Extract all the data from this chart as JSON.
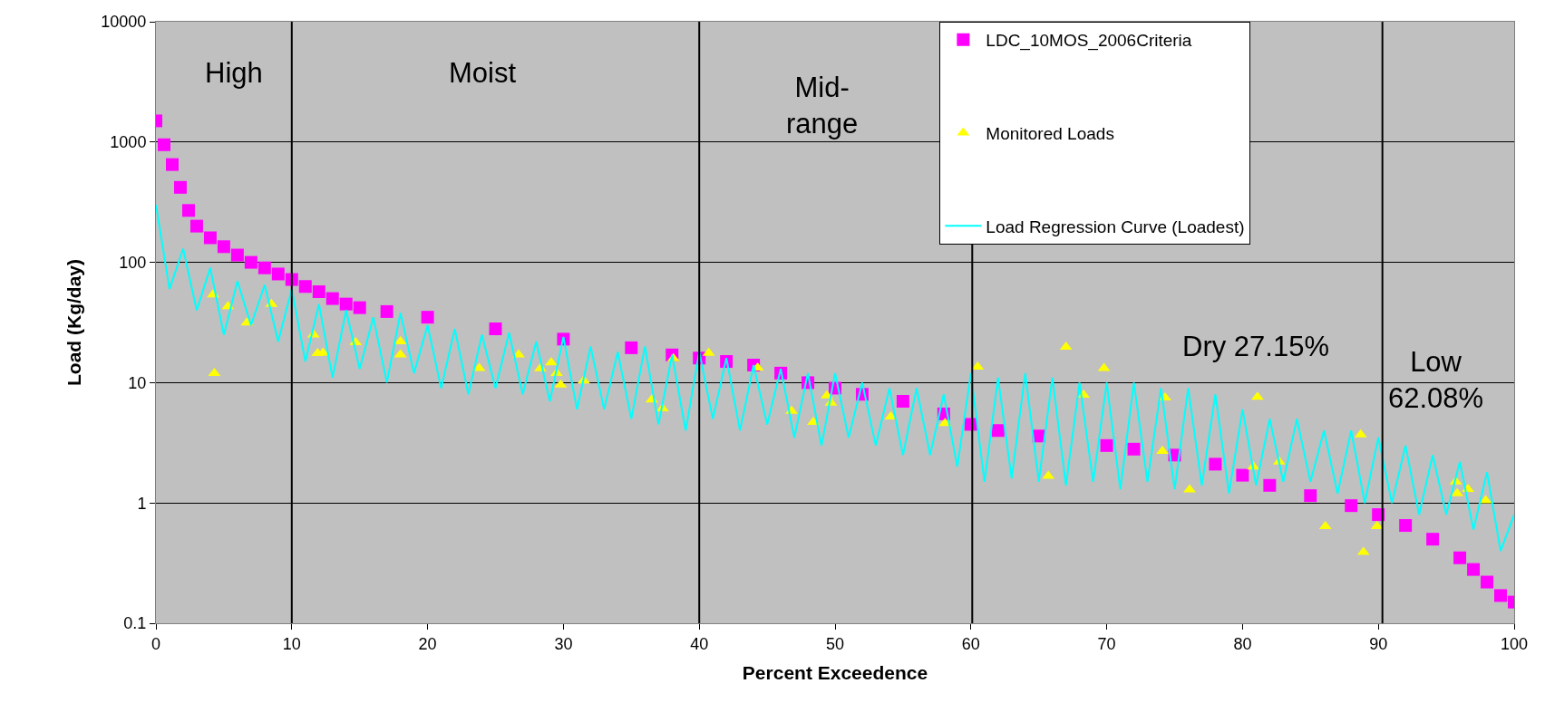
{
  "chart_data": {
    "type": "scatter",
    "xlabel": "Percent Exceedence",
    "ylabel": "Load (Kg/day)",
    "xlim": [
      0,
      100
    ],
    "xticks": [
      0,
      10,
      20,
      30,
      40,
      50,
      60,
      70,
      80,
      90,
      100
    ],
    "ylim": [
      0.1,
      10000
    ],
    "yticks": [
      0.1,
      1,
      10,
      100,
      1000,
      10000
    ],
    "log": "y",
    "grid": "y",
    "legend": "top right",
    "series": [
      {
        "name": "LDC_10MOS_2006Criteria",
        "marker": "square",
        "color": "#ff00ff",
        "x": [
          0,
          0.6,
          1.2,
          1.8,
          2.4,
          3,
          4,
          5,
          6,
          7,
          8,
          9,
          10,
          11,
          12,
          13,
          14,
          15,
          17,
          20,
          25,
          30,
          35,
          38,
          40,
          42,
          44,
          46,
          48,
          50,
          52,
          55,
          58,
          60,
          62,
          65,
          70,
          72,
          75,
          78,
          80,
          82,
          85,
          88,
          90,
          92,
          94,
          96,
          97,
          98,
          99,
          100
        ],
        "values": [
          1500,
          950,
          650,
          420,
          270,
          200,
          160,
          135,
          115,
          100,
          90,
          80,
          72,
          63,
          57,
          50,
          45,
          42,
          39,
          35,
          28,
          23,
          19.5,
          17,
          16,
          15,
          14,
          12,
          10,
          9,
          8,
          7,
          5.5,
          4.5,
          4,
          3.6,
          3,
          2.8,
          2.5,
          2.1,
          1.7,
          1.4,
          1.15,
          0.95,
          0.8,
          0.65,
          0.5,
          0.35,
          0.28,
          0.22,
          0.17,
          0.15
        ]
      },
      {
        "name": "Monitored Loads",
        "marker": "triangle",
        "color": "#ffff00",
        "x": [
          4.2,
          5.3,
          6.7,
          8.5,
          4.3,
          11.6,
          11.9,
          12.3,
          14.7,
          18.0,
          18.0,
          23.8,
          26.7,
          28.3,
          29.1,
          29.5,
          29.8,
          31.5,
          36.5,
          37.3,
          38.1,
          40.7,
          44.3,
          46.8,
          48.4,
          49.4,
          49.7,
          54.1,
          58.1,
          60.5,
          65.7,
          67.0,
          68.3,
          69.8,
          74.1,
          74.3,
          76.1,
          80.8,
          81.1,
          82.7,
          86.1,
          88.7,
          88.9,
          89.9,
          95.7,
          95.8,
          96.6,
          97.9
        ],
        "values": [
          54,
          43,
          31.5,
          45,
          12,
          25,
          17.5,
          17.7,
          21.6,
          22,
          17.1,
          13.2,
          17.1,
          13.1,
          14.7,
          12,
          9.6,
          10.4,
          7.2,
          6.1,
          15.9,
          17.6,
          13.3,
          5.8,
          4.7,
          7.8,
          6.8,
          5.2,
          4.6,
          13.5,
          1.67,
          19.8,
          7.9,
          13.2,
          2.7,
          7.5,
          1.29,
          2.0,
          7.6,
          2.2,
          0.64,
          3.7,
          0.39,
          0.64,
          1.5,
          1.2,
          1.3,
          1.05
        ]
      },
      {
        "name": "Load Regression Curve (Loadest)",
        "type": "line",
        "marker": "none",
        "color": "#00ffff",
        "x": [
          0,
          1,
          2,
          3,
          4,
          5,
          6,
          7,
          8,
          9,
          10,
          11,
          12,
          13,
          14,
          15,
          16,
          17,
          18,
          19,
          20,
          21,
          22,
          23,
          24,
          25,
          26,
          27,
          28,
          29,
          30,
          31,
          32,
          33,
          34,
          35,
          36,
          37,
          38,
          39,
          40,
          41,
          42,
          43,
          44,
          45,
          46,
          47,
          48,
          49,
          50,
          51,
          52,
          53,
          54,
          55,
          56,
          57,
          58,
          59,
          60,
          61,
          62,
          63,
          64,
          65,
          66,
          67,
          68,
          69,
          70,
          71,
          72,
          73,
          74,
          75,
          76,
          77,
          78,
          79,
          80,
          81,
          82,
          83,
          84,
          85,
          86,
          87,
          88,
          89,
          90,
          91,
          92,
          93,
          94,
          95,
          96,
          97,
          98,
          99,
          100
        ],
        "values": [
          300,
          60,
          130,
          40,
          90,
          25,
          70,
          30,
          65,
          22,
          60,
          15,
          45,
          11,
          40,
          13,
          35,
          10,
          38,
          12,
          30,
          9,
          28,
          8,
          25,
          9,
          26,
          8,
          22,
          7,
          24,
          6,
          20,
          6,
          18,
          5,
          20,
          4.5,
          17,
          4,
          18,
          5,
          16,
          4,
          14,
          4.5,
          13,
          3.5,
          12,
          3,
          12,
          3.5,
          10,
          3,
          9,
          2.5,
          9,
          2.5,
          8,
          2,
          12,
          1.5,
          11,
          1.6,
          12,
          1.5,
          11,
          1.4,
          10,
          1.5,
          10,
          1.3,
          10,
          1.5,
          9,
          1.3,
          9,
          1.4,
          8,
          1.2,
          6,
          1.4,
          5,
          1.5,
          5,
          1.5,
          4,
          1.2,
          4,
          1,
          3.5,
          1,
          3,
          0.8,
          2.5,
          0.8,
          2.2,
          0.6,
          1.8,
          0.4,
          0.8
        ]
      }
    ],
    "ref_lines": [
      {
        "axis": "x",
        "value": 10,
        "color": "#000000"
      },
      {
        "axis": "x",
        "value": 40,
        "color": "#000000"
      },
      {
        "axis": "x",
        "value": 60.1,
        "color": "#000000"
      },
      {
        "axis": "x",
        "value": 90.3,
        "color": "#000000"
      }
    ],
    "annotations": [
      "High",
      "Moist",
      "Mid-\nrange",
      "Dry 27.15%",
      "Low\n62.08%"
    ]
  }
}
